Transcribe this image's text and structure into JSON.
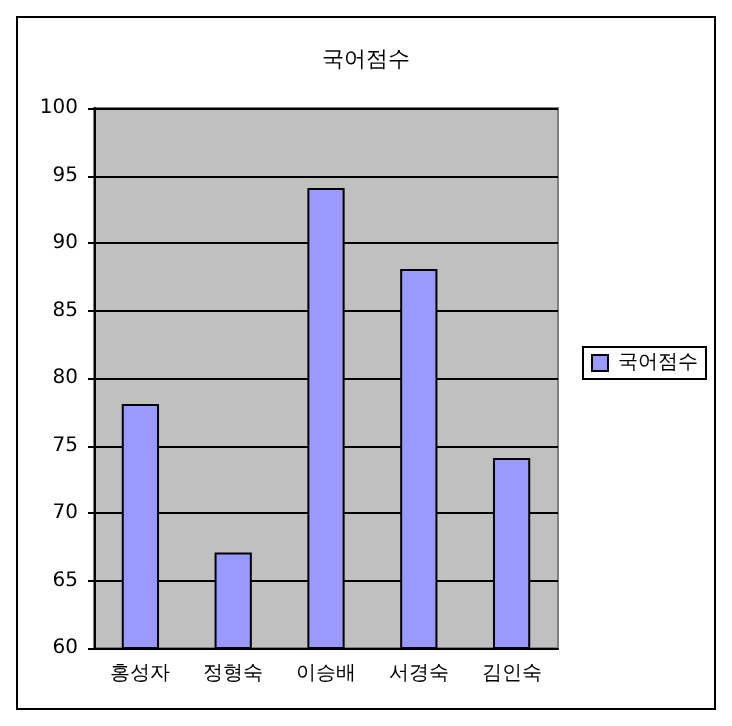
{
  "chart_data": {
    "type": "bar",
    "title": "국어점수",
    "categories": [
      "홍성자",
      "정형숙",
      "이승배",
      "서경숙",
      "김인숙"
    ],
    "series": [
      {
        "name": "국어점수",
        "color": "#9999ff",
        "values": [
          78,
          67,
          94,
          88,
          74
        ]
      }
    ],
    "ylim": [
      60,
      100
    ],
    "yticks": [
      60,
      65,
      70,
      75,
      80,
      85,
      90,
      95,
      100
    ],
    "grid": "y",
    "legend": "right"
  }
}
